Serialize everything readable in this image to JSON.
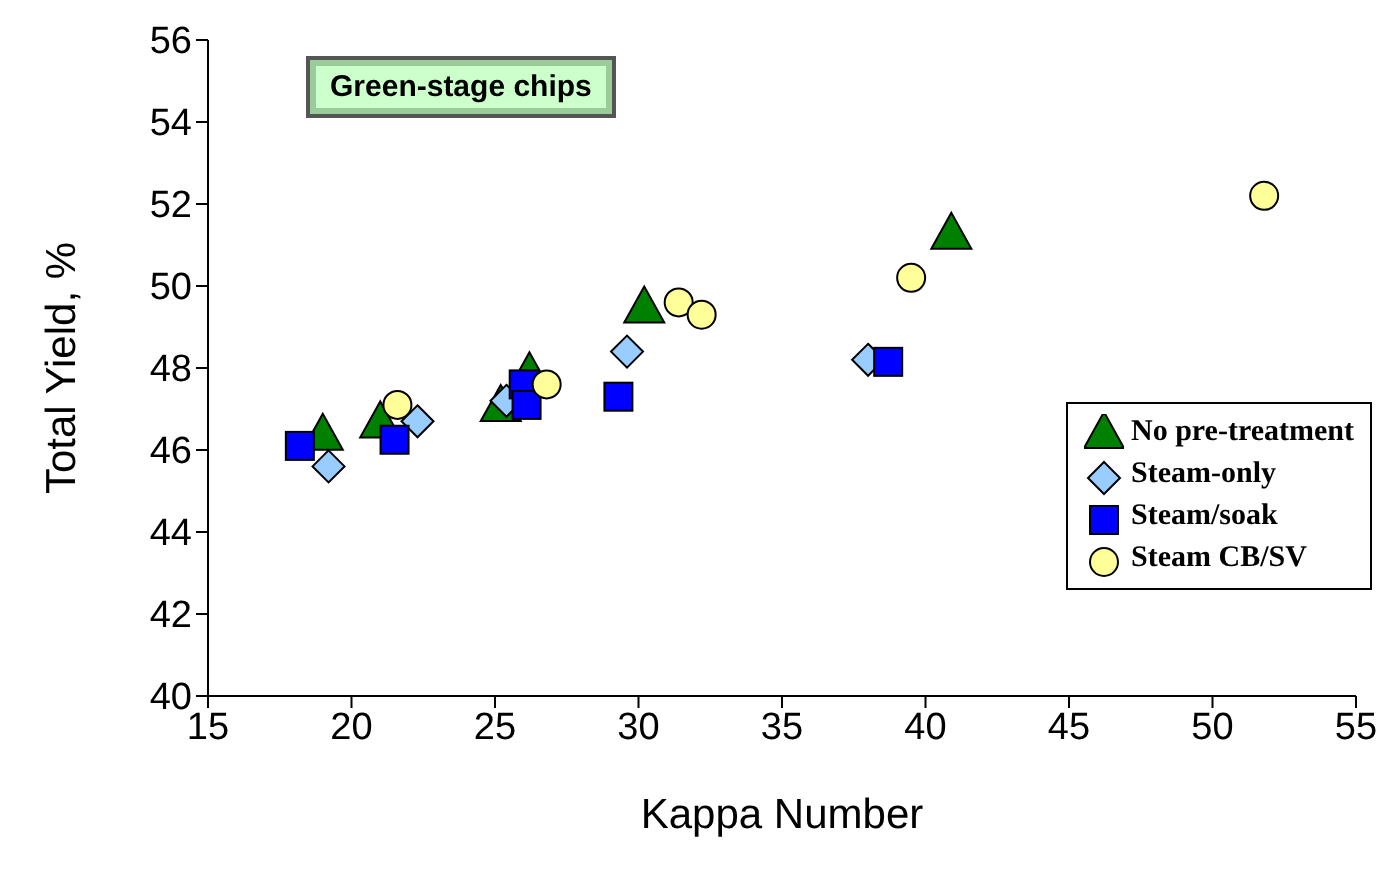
{
  "chart_data": {
    "type": "scatter",
    "title": "Green-stage chips",
    "xlabel": "Kappa Number",
    "ylabel": "Total Yield, %",
    "xlim": [
      15,
      55
    ],
    "xticks": [
      15,
      20,
      25,
      30,
      35,
      40,
      45,
      50,
      55
    ],
    "ylim": [
      40,
      56
    ],
    "yticks": [
      40,
      42,
      44,
      46,
      48,
      50,
      52,
      54,
      56
    ],
    "grid": false,
    "legend": "bottom right",
    "series": [
      {
        "name": "No pre-treatment",
        "color": "#008000",
        "marker": "triangle",
        "x": [
          19.0,
          21.0,
          25.2,
          26.2,
          30.2,
          40.9
        ],
        "values": [
          46.3,
          46.6,
          47.0,
          47.8,
          49.4,
          51.2
        ]
      },
      {
        "name": "Steam-only",
        "color": "#99ccff",
        "marker": "diamond",
        "x": [
          19.2,
          22.3,
          25.4,
          29.6,
          38.0
        ],
        "values": [
          45.6,
          46.7,
          47.2,
          48.4,
          48.2
        ]
      },
      {
        "name": "Steam/soak",
        "color": "#0000ff",
        "marker": "square",
        "x": [
          18.2,
          21.5,
          26.0,
          26.1,
          29.3,
          38.7
        ],
        "values": [
          46.1,
          46.25,
          47.6,
          47.1,
          47.3,
          48.15
        ]
      },
      {
        "name": "Steam CB/SV",
        "color": "#ffff99",
        "marker": "circle",
        "x": [
          21.6,
          26.8,
          31.4,
          32.2,
          39.5,
          51.8
        ],
        "values": [
          47.1,
          47.6,
          49.6,
          49.3,
          50.2,
          52.2
        ]
      }
    ]
  }
}
